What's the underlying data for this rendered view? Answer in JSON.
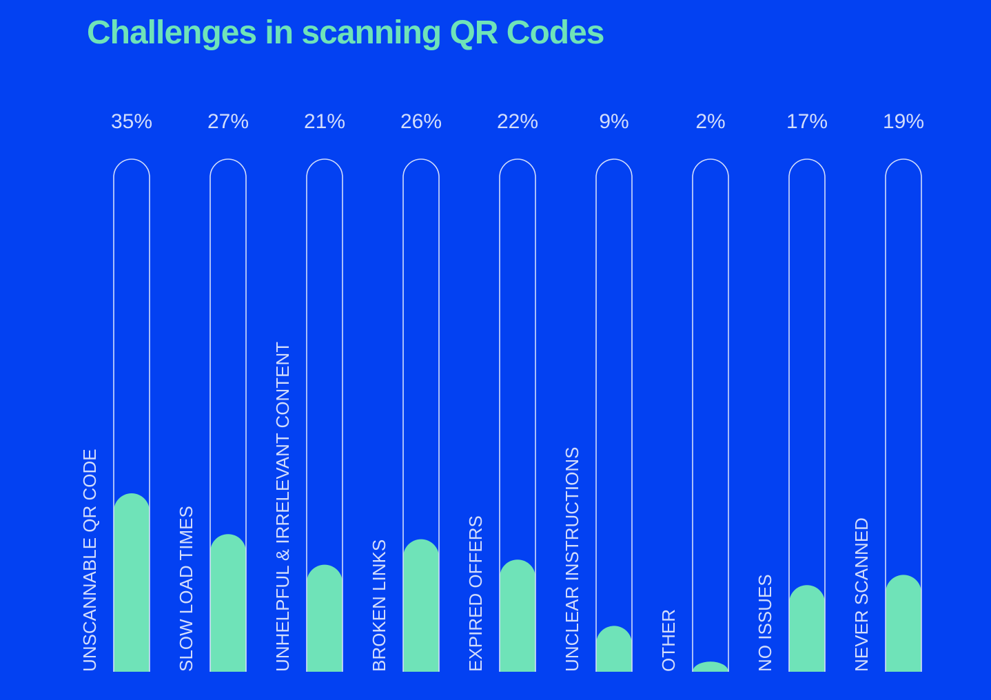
{
  "chart_data": {
    "type": "bar",
    "title": "Challenges in scanning QR Codes",
    "categories": [
      "UNSCANNABLE QR CODE",
      "SLOW LOAD TIMES",
      "UNHELPFUL & IRRELEVANT CONTENT",
      "BROKEN LINKS",
      "EXPIRED OFFERS",
      "UNCLEAR INSTRUCTIONS",
      "OTHER",
      "NO ISSUES",
      "NEVER SCANNED"
    ],
    "values": [
      35,
      27,
      21,
      26,
      22,
      9,
      2,
      17,
      19
    ],
    "value_labels": [
      "35%",
      "27%",
      "21%",
      "26%",
      "22%",
      "9%",
      "2%",
      "17%",
      "19%"
    ],
    "ylim": [
      0,
      100
    ],
    "xlabel": "",
    "ylabel": "",
    "colors": {
      "background": "#0341F2",
      "fill": "#6FE3B8",
      "outline": "#D3DDFB",
      "text": "#D3DDFB",
      "title": "#6FE3B8"
    }
  }
}
